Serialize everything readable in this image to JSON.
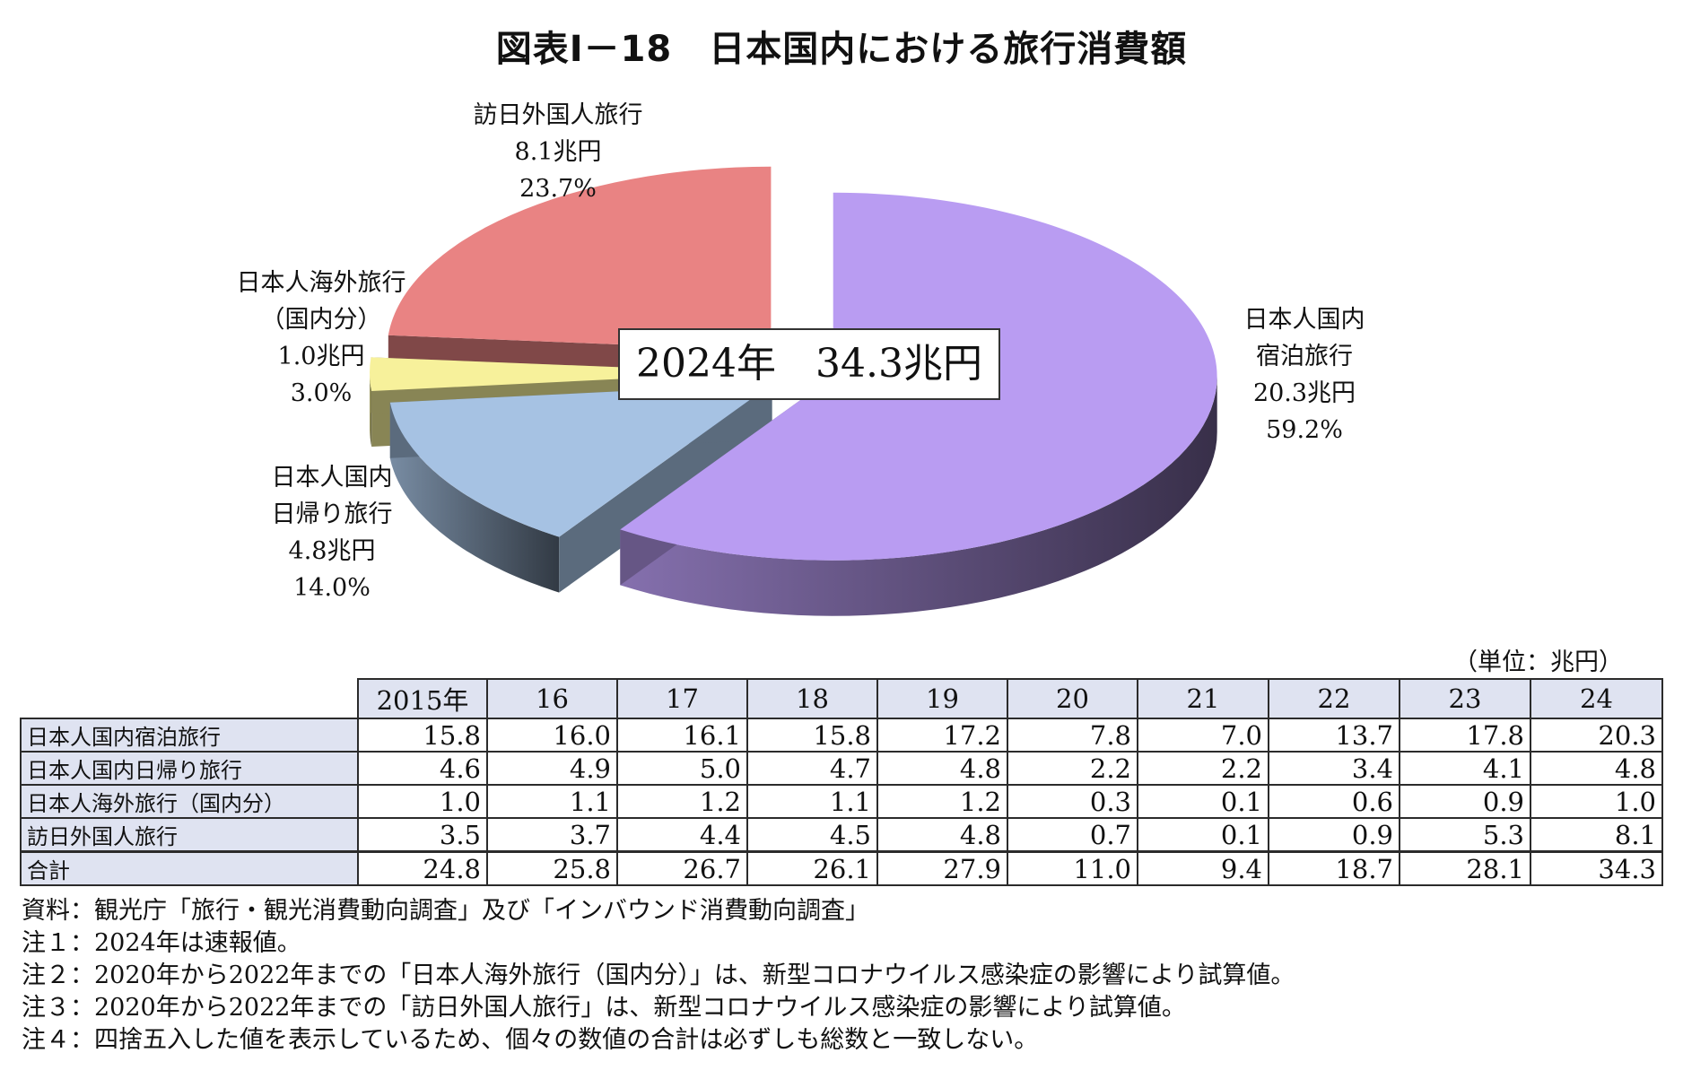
{
  "title": "図表Ⅰ－18　日本国内における旅行消費額",
  "total_box": "2024年　34.3兆円",
  "unit": "（単位：兆円）",
  "chart_data": [
    {
      "type": "pie",
      "title": "2024年　34.3兆円",
      "slices": [
        {
          "name": "日本人国内宿泊旅行",
          "label_lines": [
            "日本人国内",
            "宿泊旅行",
            "20.3兆円",
            "59.2%"
          ],
          "value": 20.3,
          "percent": 59.2,
          "color": "#b99cf2"
        },
        {
          "name": "日本人国内日帰り旅行",
          "label_lines": [
            "日本人国内",
            "日帰り旅行",
            "4.8兆円",
            "14.0%"
          ],
          "value": 4.8,
          "percent": 14.0,
          "color": "#a6c2e3"
        },
        {
          "name": "日本人海外旅行（国内分）",
          "label_lines": [
            "日本人海外旅行",
            "（国内分）",
            "1.0兆円",
            "3.0%"
          ],
          "value": 1.0,
          "percent": 3.0,
          "color": "#f7f19b"
        },
        {
          "name": "訪日外国人旅行",
          "label_lines": [
            "訪日外国人旅行",
            "8.1兆円",
            "23.7%"
          ],
          "value": 8.1,
          "percent": 23.7,
          "color": "#e98383"
        }
      ]
    },
    {
      "type": "table",
      "header_blank": "",
      "columns": [
        "2015年",
        "16",
        "17",
        "18",
        "19",
        "20",
        "21",
        "22",
        "23",
        "24"
      ],
      "rows": [
        {
          "name": "日本人国内宿泊旅行",
          "values": [
            "15.8",
            "16.0",
            "16.1",
            "15.8",
            "17.2",
            "7.8",
            "7.0",
            "13.7",
            "17.8",
            "20.3"
          ]
        },
        {
          "name": "日本人国内日帰り旅行",
          "values": [
            "4.6",
            "4.9",
            "5.0",
            "4.7",
            "4.8",
            "2.2",
            "2.2",
            "3.4",
            "4.1",
            "4.8"
          ]
        },
        {
          "name": "日本人海外旅行（国内分）",
          "values": [
            "1.0",
            "1.1",
            "1.2",
            "1.1",
            "1.2",
            "0.3",
            "0.1",
            "0.6",
            "0.9",
            "1.0"
          ]
        },
        {
          "name": "訪日外国人旅行",
          "values": [
            "3.5",
            "3.7",
            "4.4",
            "4.5",
            "4.8",
            "0.7",
            "0.1",
            "0.9",
            "5.3",
            "8.1"
          ]
        },
        {
          "name": "合計",
          "values": [
            "24.8",
            "25.8",
            "26.7",
            "26.1",
            "27.9",
            "11.0",
            "9.4",
            "18.7",
            "28.1",
            "34.3"
          ]
        }
      ]
    }
  ],
  "notes": [
    "資料：観光庁「旅行・観光消費動向調査」及び「インバウンド消費動向調査」",
    "注１：2024年は速報値。",
    "注２：2020年から2022年までの「日本人海外旅行（国内分）」は、新型コロナウイルス感染症の影響により試算値。",
    "注３：2020年から2022年までの「訪日外国人旅行」は、新型コロナウイルス感染症の影響により試算値。",
    "注４：四捨五入した値を表示しているため、個々の数値の合計は必ずしも総数と一致しない。"
  ]
}
